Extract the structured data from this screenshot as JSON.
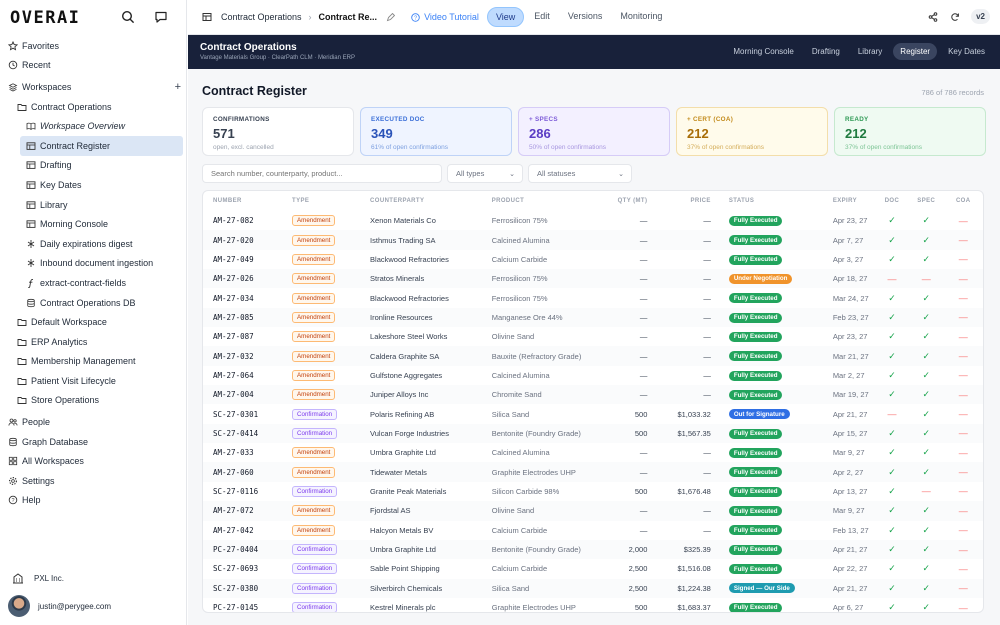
{
  "sidebar": {
    "logo": "OVERAI",
    "items": [
      {
        "label": "Favorites",
        "icon": "star-icon",
        "indent": 0
      },
      {
        "label": "Recent",
        "icon": "clock-icon",
        "indent": 0
      },
      {
        "label": "Workspaces",
        "icon": "stack-icon",
        "indent": 0,
        "plus": true
      },
      {
        "label": "Contract Operations",
        "icon": "folder-icon",
        "indent": 1
      },
      {
        "label": "Workspace Overview",
        "icon": "book-icon",
        "indent": 2,
        "italic": true
      },
      {
        "label": "Contract Register",
        "icon": "table-icon",
        "indent": 2,
        "active": true
      },
      {
        "label": "Drafting",
        "icon": "table-icon",
        "indent": 2
      },
      {
        "label": "Key Dates",
        "icon": "table-icon",
        "indent": 2
      },
      {
        "label": "Library",
        "icon": "table-icon",
        "indent": 2
      },
      {
        "label": "Morning Console",
        "icon": "table-icon",
        "indent": 2
      },
      {
        "label": "Daily expirations digest",
        "icon": "workflow-icon",
        "indent": 2
      },
      {
        "label": "Inbound document ingestion",
        "icon": "workflow-icon",
        "indent": 2
      },
      {
        "label": "extract-contract-fields",
        "icon": "function-icon",
        "indent": 2
      },
      {
        "label": "Contract Operations DB",
        "icon": "database-icon",
        "indent": 2
      },
      {
        "label": "Default Workspace",
        "icon": "folder-icon",
        "indent": 1
      },
      {
        "label": "ERP Analytics",
        "icon": "folder-icon",
        "indent": 1
      },
      {
        "label": "Membership Management",
        "icon": "folder-icon",
        "indent": 1
      },
      {
        "label": "Patient Visit Lifecycle",
        "icon": "folder-icon",
        "indent": 1
      },
      {
        "label": "Store Operations",
        "icon": "folder-icon",
        "indent": 1
      },
      {
        "label": "People",
        "icon": "people-icon",
        "indent": 0
      },
      {
        "label": "Graph Database",
        "icon": "database-icon",
        "indent": 0
      },
      {
        "label": "All Workspaces",
        "icon": "grid-icon",
        "indent": 0
      },
      {
        "label": "Settings",
        "icon": "gear-icon",
        "indent": 0
      },
      {
        "label": "Help",
        "icon": "help-icon",
        "indent": 0
      }
    ],
    "org": "PXL Inc.",
    "user": "justin@perygee.com"
  },
  "topbar": {
    "crumb_parent": "Contract Operations",
    "crumb_current": "Contract Re...",
    "video": "Video Tutorial",
    "tabs": [
      "View",
      "Edit",
      "Versions",
      "Monitoring"
    ],
    "version": "v2"
  },
  "app": {
    "title": "Contract Operations",
    "subtitle": "Vantage Materials Group · ClearPath CLM · Meridian ERP",
    "nav": [
      "Morning Console",
      "Drafting",
      "Library",
      "Register",
      "Key Dates"
    ]
  },
  "main": {
    "title": "Contract Register",
    "records": "786 of 786 records",
    "cards": [
      {
        "label": "CONFIRMATIONS",
        "value": "571",
        "sub": "open, excl. cancelled",
        "bg": "#ffffff",
        "border": "#e5e7eb",
        "labelColor": "#374151",
        "valueColor": "#374151",
        "subColor": "#9ca3af"
      },
      {
        "label": "EXECUTED DOC",
        "value": "349",
        "sub": "61% of open confirmations",
        "bg": "#eff4ff",
        "border": "#bfd3f7",
        "labelColor": "#3b6fd8",
        "valueColor": "#2952b8",
        "subColor": "#7ea0e0"
      },
      {
        "label": "+ SPECS",
        "value": "286",
        "sub": "50% of open confirmations",
        "bg": "#f3f0ff",
        "border": "#d6ccf7",
        "labelColor": "#7c5ad8",
        "valueColor": "#5b3cc4",
        "subColor": "#a897e0"
      },
      {
        "label": "+ CERT (COA)",
        "value": "212",
        "sub": "37% of open confirmations",
        "bg": "#fffbeb",
        "border": "#f3deaa",
        "labelColor": "#c28a1a",
        "valueColor": "#a86d07",
        "subColor": "#d4ad5a"
      },
      {
        "label": "READY",
        "value": "212",
        "sub": "37% of open confirmations",
        "bg": "#effaf2",
        "border": "#c6e9cf",
        "labelColor": "#2f9a55",
        "valueColor": "#1f7a3f",
        "subColor": "#7cc495"
      }
    ],
    "search_placeholder": "Search number, counterparty, product...",
    "type_filter": "All types",
    "status_filter": "All statuses"
  },
  "table": {
    "columns": [
      "NUMBER",
      "TYPE",
      "COUNTERPARTY",
      "PRODUCT",
      "QTY (MT)",
      "PRICE",
      "STATUS",
      "EXPIRY",
      "DOC",
      "SPEC",
      "COA"
    ],
    "status_colors": {
      "Fully Executed": "#22a45d",
      "Under Negotiation": "#f0932b",
      "Out for Signature": "#2f6fe4",
      "Signed — Our Side": "#1e9bb0"
    },
    "rows": [
      [
        "AM-27-082",
        "Amendment",
        "Xenon Materials Co",
        "Ferrosilicon 75%",
        "—",
        "—",
        "Fully Executed",
        "Apr 23, 27",
        "y",
        "y",
        "n"
      ],
      [
        "AM-27-020",
        "Amendment",
        "Isthmus Trading SA",
        "Calcined Alumina",
        "—",
        "—",
        "Fully Executed",
        "Apr 7, 27",
        "y",
        "y",
        "n"
      ],
      [
        "AM-27-049",
        "Amendment",
        "Blackwood Refractories",
        "Calcium Carbide",
        "—",
        "—",
        "Fully Executed",
        "Apr 3, 27",
        "y",
        "y",
        "n"
      ],
      [
        "AM-27-026",
        "Amendment",
        "Stratos Minerals",
        "Ferrosilicon 75%",
        "—",
        "—",
        "Under Negotiation",
        "Apr 18, 27",
        "n",
        "n",
        "n"
      ],
      [
        "AM-27-034",
        "Amendment",
        "Blackwood Refractories",
        "Ferrosilicon 75%",
        "—",
        "—",
        "Fully Executed",
        "Mar 24, 27",
        "y",
        "y",
        "n"
      ],
      [
        "AM-27-085",
        "Amendment",
        "Ironline Resources",
        "Manganese Ore 44%",
        "—",
        "—",
        "Fully Executed",
        "Feb 23, 27",
        "y",
        "y",
        "n"
      ],
      [
        "AM-27-087",
        "Amendment",
        "Lakeshore Steel Works",
        "Olivine Sand",
        "—",
        "—",
        "Fully Executed",
        "Apr 23, 27",
        "y",
        "y",
        "n"
      ],
      [
        "AM-27-032",
        "Amendment",
        "Caldera Graphite SA",
        "Bauxite (Refractory Grade)",
        "—",
        "—",
        "Fully Executed",
        "Mar 21, 27",
        "y",
        "y",
        "n"
      ],
      [
        "AM-27-064",
        "Amendment",
        "Gulfstone Aggregates",
        "Calcined Alumina",
        "—",
        "—",
        "Fully Executed",
        "Mar 2, 27",
        "y",
        "y",
        "n"
      ],
      [
        "AM-27-004",
        "Amendment",
        "Juniper Alloys Inc",
        "Chromite Sand",
        "—",
        "—",
        "Fully Executed",
        "Mar 19, 27",
        "y",
        "y",
        "n"
      ],
      [
        "SC-27-0301",
        "Confirmation",
        "Polaris Refining AB",
        "Silica Sand",
        "500",
        "$1,033.32",
        "Out for Signature",
        "Apr 21, 27",
        "n",
        "y",
        "n"
      ],
      [
        "SC-27-0414",
        "Confirmation",
        "Vulcan Forge Industries",
        "Bentonite (Foundry Grade)",
        "500",
        "$1,567.35",
        "Fully Executed",
        "Apr 15, 27",
        "y",
        "y",
        "n"
      ],
      [
        "AM-27-033",
        "Amendment",
        "Umbra Graphite Ltd",
        "Calcined Alumina",
        "—",
        "—",
        "Fully Executed",
        "Mar 9, 27",
        "y",
        "y",
        "n"
      ],
      [
        "AM-27-060",
        "Amendment",
        "Tidewater Metals",
        "Graphite Electrodes UHP",
        "—",
        "—",
        "Fully Executed",
        "Apr 2, 27",
        "y",
        "y",
        "n"
      ],
      [
        "SC-27-0116",
        "Confirmation",
        "Granite Peak Materials",
        "Silicon Carbide 98%",
        "500",
        "$1,676.48",
        "Fully Executed",
        "Apr 13, 27",
        "y",
        "n",
        "n"
      ],
      [
        "AM-27-072",
        "Amendment",
        "Fjordstal AS",
        "Olivine Sand",
        "—",
        "—",
        "Fully Executed",
        "Mar 9, 27",
        "y",
        "y",
        "n"
      ],
      [
        "AM-27-042",
        "Amendment",
        "Halcyon Metals BV",
        "Calcium Carbide",
        "—",
        "—",
        "Fully Executed",
        "Feb 13, 27",
        "y",
        "y",
        "n"
      ],
      [
        "PC-27-0404",
        "Confirmation",
        "Umbra Graphite Ltd",
        "Bentonite (Foundry Grade)",
        "2,000",
        "$325.39",
        "Fully Executed",
        "Apr 21, 27",
        "y",
        "y",
        "n"
      ],
      [
        "SC-27-0693",
        "Confirmation",
        "Sable Point Shipping",
        "Calcium Carbide",
        "2,500",
        "$1,516.08",
        "Fully Executed",
        "Apr 22, 27",
        "y",
        "y",
        "n"
      ],
      [
        "SC-27-0380",
        "Confirmation",
        "Silverbirch Chemicals",
        "Silica Sand",
        "2,500",
        "$1,224.38",
        "Signed — Our Side",
        "Apr 21, 27",
        "y",
        "y",
        "n"
      ],
      [
        "PC-27-0145",
        "Confirmation",
        "Kestrel Minerals plc",
        "Graphite Electrodes UHP",
        "500",
        "$1,683.37",
        "Fully Executed",
        "Apr 6, 27",
        "y",
        "y",
        "n"
      ]
    ]
  }
}
